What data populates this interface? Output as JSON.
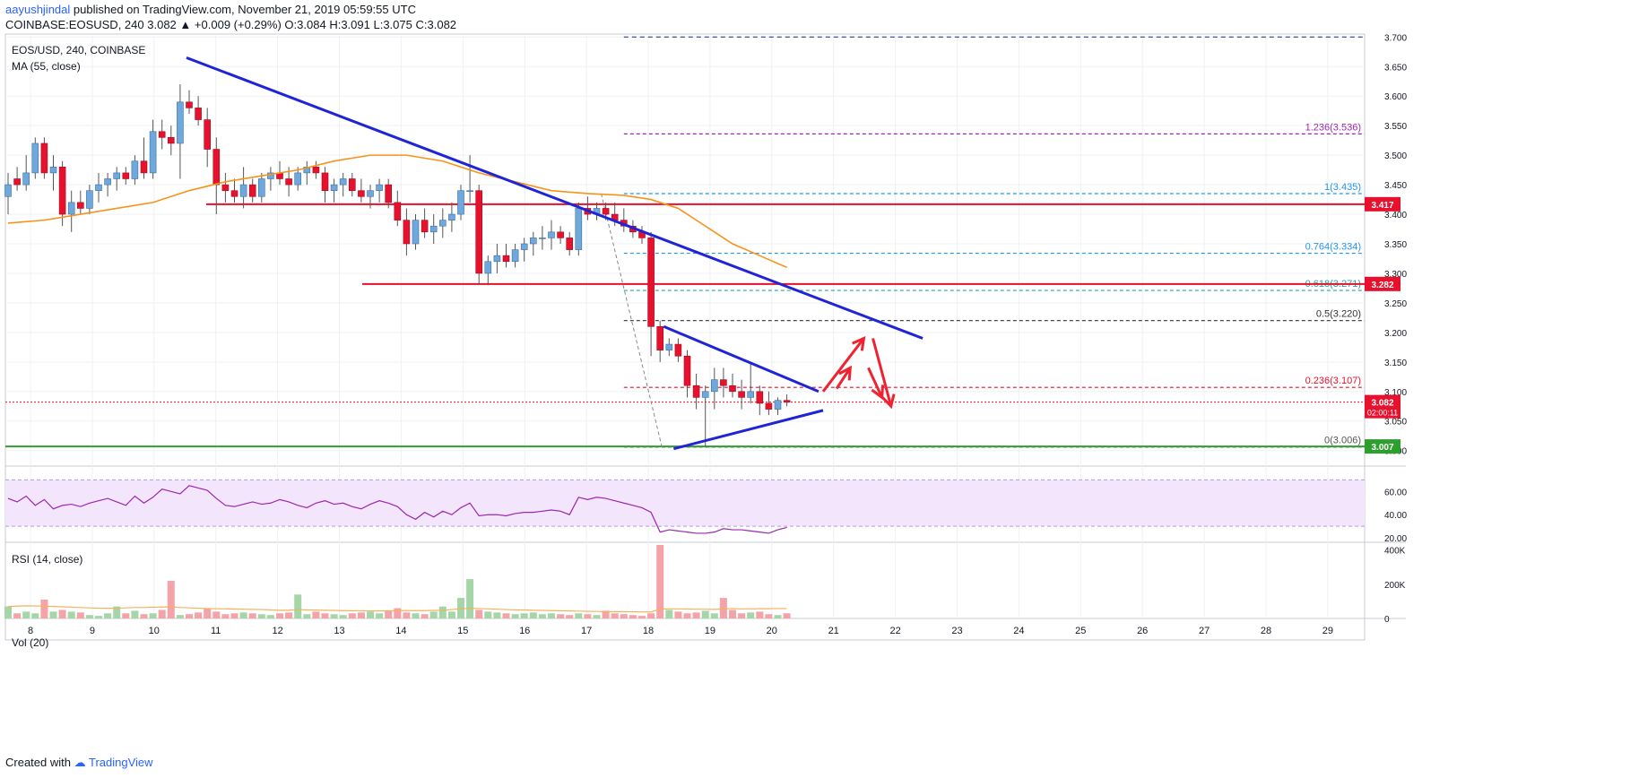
{
  "header": {
    "user": "aayushjindal",
    "published": "published on TradingView.com, November 21, 2019 05:59:55 UTC",
    "symbol": "COINBASE:EOSUSD, 240",
    "last": "3.082",
    "arrow": "▲",
    "change": "+0.009 (+0.29%)",
    "o_label": "O:",
    "o": "3.084",
    "h_label": "H:",
    "h": "3.091",
    "l_label": "L:",
    "l": "3.075",
    "c_label": "C:",
    "c": "3.082"
  },
  "legend": {
    "pair": "EOS/USD, 240, COINBASE",
    "ma": "MA (55, close)",
    "rsi": "RSI (14, close)",
    "vol": "Vol (20)"
  },
  "footer": {
    "created": "Created with",
    "brand": "TradingView"
  },
  "colors": {
    "up": "#6fa8dc",
    "down": "#e8112d",
    "ma": "#f7931a",
    "trend": "#1f24d6",
    "level": "#e8112d",
    "support": "#2e9e2e",
    "rsi_line": "#9c27b0",
    "rsi_band": "#f3e5fb",
    "vol_up": "#a5d6a7",
    "vol_down": "#f4a3a8",
    "vol_ma": "#f5b25c"
  },
  "chart_data": [
    {
      "type": "candlestick",
      "title": "EOS/USD, 240, COINBASE",
      "xlabel": "",
      "ylabel": "",
      "x_ticks": [
        "8",
        "9",
        "10",
        "11",
        "12",
        "13",
        "14",
        "15",
        "16",
        "17",
        "18",
        "19",
        "20",
        "21",
        "22",
        "23",
        "24",
        "25",
        "26",
        "27",
        "28",
        "29"
      ],
      "y_ticks": [
        "3.000",
        "3.050",
        "3.100",
        "3.150",
        "3.200",
        "3.250",
        "3.300",
        "3.350",
        "3.400",
        "3.450",
        "3.500",
        "3.550",
        "3.600",
        "3.650",
        "3.700"
      ],
      "ylim": [
        2.995,
        3.705
      ],
      "candles": [
        [
          3.43,
          3.47,
          3.4,
          3.45
        ],
        [
          3.46,
          3.48,
          3.44,
          3.45
        ],
        [
          3.45,
          3.5,
          3.44,
          3.47
        ],
        [
          3.47,
          3.53,
          3.46,
          3.52
        ],
        [
          3.52,
          3.53,
          3.46,
          3.47
        ],
        [
          3.47,
          3.5,
          3.44,
          3.48
        ],
        [
          3.48,
          3.49,
          3.38,
          3.4
        ],
        [
          3.4,
          3.44,
          3.37,
          3.42
        ],
        [
          3.42,
          3.44,
          3.4,
          3.41
        ],
        [
          3.41,
          3.45,
          3.4,
          3.44
        ],
        [
          3.44,
          3.47,
          3.42,
          3.45
        ],
        [
          3.45,
          3.47,
          3.43,
          3.46
        ],
        [
          3.46,
          3.48,
          3.44,
          3.47
        ],
        [
          3.47,
          3.48,
          3.45,
          3.46
        ],
        [
          3.46,
          3.5,
          3.45,
          3.49
        ],
        [
          3.49,
          3.53,
          3.46,
          3.47
        ],
        [
          3.47,
          3.56,
          3.46,
          3.54
        ],
        [
          3.54,
          3.56,
          3.51,
          3.53
        ],
        [
          3.53,
          3.55,
          3.5,
          3.52
        ],
        [
          3.52,
          3.62,
          3.46,
          3.59
        ],
        [
          3.59,
          3.61,
          3.57,
          3.58
        ],
        [
          3.58,
          3.6,
          3.55,
          3.56
        ],
        [
          3.56,
          3.58,
          3.48,
          3.51
        ],
        [
          3.51,
          3.53,
          3.4,
          3.45
        ],
        [
          3.45,
          3.47,
          3.42,
          3.44
        ],
        [
          3.44,
          3.46,
          3.42,
          3.43
        ],
        [
          3.43,
          3.48,
          3.41,
          3.45
        ],
        [
          3.45,
          3.46,
          3.42,
          3.43
        ],
        [
          3.43,
          3.47,
          3.42,
          3.46
        ],
        [
          3.46,
          3.48,
          3.44,
          3.47
        ],
        [
          3.47,
          3.49,
          3.45,
          3.46
        ],
        [
          3.46,
          3.48,
          3.43,
          3.45
        ],
        [
          3.45,
          3.48,
          3.44,
          3.47
        ],
        [
          3.47,
          3.49,
          3.45,
          3.48
        ],
        [
          3.48,
          3.49,
          3.46,
          3.47
        ],
        [
          3.47,
          3.48,
          3.42,
          3.44
        ],
        [
          3.44,
          3.46,
          3.42,
          3.45
        ],
        [
          3.45,
          3.47,
          3.43,
          3.46
        ],
        [
          3.46,
          3.47,
          3.43,
          3.44
        ],
        [
          3.44,
          3.46,
          3.42,
          3.43
        ],
        [
          3.43,
          3.45,
          3.41,
          3.44
        ],
        [
          3.44,
          3.46,
          3.42,
          3.45
        ],
        [
          3.45,
          3.46,
          3.41,
          3.42
        ],
        [
          3.42,
          3.44,
          3.38,
          3.39
        ],
        [
          3.39,
          3.41,
          3.33,
          3.35
        ],
        [
          3.35,
          3.4,
          3.34,
          3.39
        ],
        [
          3.39,
          3.41,
          3.36,
          3.37
        ],
        [
          3.37,
          3.4,
          3.35,
          3.38
        ],
        [
          3.38,
          3.41,
          3.36,
          3.39
        ],
        [
          3.39,
          3.42,
          3.37,
          3.4
        ],
        [
          3.4,
          3.45,
          3.39,
          3.44
        ],
        [
          3.44,
          3.5,
          3.42,
          3.44
        ],
        [
          3.44,
          3.45,
          3.28,
          3.3
        ],
        [
          3.3,
          3.33,
          3.28,
          3.32
        ],
        [
          3.32,
          3.35,
          3.3,
          3.33
        ],
        [
          3.33,
          3.35,
          3.31,
          3.32
        ],
        [
          3.32,
          3.35,
          3.31,
          3.34
        ],
        [
          3.34,
          3.36,
          3.32,
          3.35
        ],
        [
          3.35,
          3.37,
          3.33,
          3.36
        ],
        [
          3.36,
          3.38,
          3.34,
          3.36
        ],
        [
          3.36,
          3.39,
          3.34,
          3.37
        ],
        [
          3.37,
          3.38,
          3.35,
          3.36
        ],
        [
          3.36,
          3.37,
          3.33,
          3.34
        ],
        [
          3.34,
          3.42,
          3.33,
          3.41
        ],
        [
          3.41,
          3.43,
          3.39,
          3.4
        ],
        [
          3.4,
          3.42,
          3.39,
          3.41
        ],
        [
          3.41,
          3.42,
          3.39,
          3.4
        ],
        [
          3.4,
          3.42,
          3.38,
          3.39
        ],
        [
          3.39,
          3.41,
          3.37,
          3.38
        ],
        [
          3.38,
          3.39,
          3.36,
          3.37
        ],
        [
          3.37,
          3.38,
          3.35,
          3.36
        ],
        [
          3.36,
          3.37,
          3.16,
          3.21
        ],
        [
          3.21,
          3.22,
          3.15,
          3.17
        ],
        [
          3.17,
          3.19,
          3.16,
          3.18
        ],
        [
          3.18,
          3.19,
          3.15,
          3.16
        ],
        [
          3.16,
          3.17,
          3.09,
          3.11
        ],
        [
          3.11,
          3.13,
          3.07,
          3.09
        ],
        [
          3.09,
          3.11,
          3.006,
          3.1
        ],
        [
          3.1,
          3.14,
          3.07,
          3.12
        ],
        [
          3.12,
          3.14,
          3.09,
          3.11
        ],
        [
          3.11,
          3.13,
          3.09,
          3.1
        ],
        [
          3.1,
          3.12,
          3.07,
          3.09
        ],
        [
          3.09,
          3.15,
          3.08,
          3.1
        ],
        [
          3.1,
          3.11,
          3.06,
          3.08
        ],
        [
          3.08,
          3.1,
          3.06,
          3.07
        ],
        [
          3.07,
          3.09,
          3.06,
          3.085
        ],
        [
          3.085,
          3.095,
          3.075,
          3.082
        ]
      ],
      "ma55": [
        [
          0,
          3.385
        ],
        [
          4,
          3.39
        ],
        [
          8,
          3.4
        ],
        [
          12,
          3.41
        ],
        [
          16,
          3.42
        ],
        [
          20,
          3.44
        ],
        [
          24,
          3.455
        ],
        [
          28,
          3.465
        ],
        [
          32,
          3.475
        ],
        [
          36,
          3.49
        ],
        [
          40,
          3.5
        ],
        [
          44,
          3.5
        ],
        [
          48,
          3.49
        ],
        [
          52,
          3.47
        ],
        [
          56,
          3.455
        ],
        [
          60,
          3.44
        ],
        [
          64,
          3.435
        ],
        [
          68,
          3.432
        ],
        [
          71,
          3.425
        ],
        [
          74,
          3.41
        ],
        [
          76,
          3.39
        ],
        [
          78,
          3.37
        ],
        [
          80,
          3.35
        ],
        [
          83,
          3.33
        ],
        [
          86,
          3.31
        ]
      ],
      "levels": [
        {
          "label": "3.417",
          "value": 3.417,
          "role": "resistance"
        },
        {
          "label": "3.282",
          "value": 3.282,
          "role": "resistance"
        },
        {
          "label": "3.007",
          "value": 3.007,
          "role": "support"
        }
      ],
      "fib": [
        {
          "label": "1.236(3.536)",
          "value": 3.536
        },
        {
          "label": "1(3.435)",
          "value": 3.435
        },
        {
          "label": "0.764(3.334)",
          "value": 3.334
        },
        {
          "label": "0.618(3.271)",
          "value": 3.271
        },
        {
          "label": "0.5(3.220)",
          "value": 3.22
        },
        {
          "label": "0.236(3.107)",
          "value": 3.107
        },
        {
          "label": "0(3.006)",
          "value": 3.006
        }
      ],
      "top_line": 3.7,
      "current": {
        "label": "3.082",
        "value": 3.082,
        "timer": "02:00:11"
      },
      "trendlines": [
        {
          "from": [
            19.7,
            3.665
          ],
          "to": [
            101,
            3.19
          ]
        },
        {
          "from": [
            72.4,
            3.21
          ],
          "to": [
            89.5,
            3.1
          ]
        },
        {
          "from": [
            73.5,
            3.003
          ],
          "to": [
            90,
            3.068
          ]
        }
      ],
      "arrows": [
        {
          "from": [
            90,
            3.1
          ],
          "to": [
            94.5,
            3.19
          ]
        },
        {
          "from": [
            95.5,
            3.19
          ],
          "to": [
            97.5,
            3.075
          ]
        },
        {
          "from": [
            95,
            3.14
          ],
          "to": [
            96.5,
            3.09
          ]
        },
        {
          "from": [
            91.5,
            3.105
          ],
          "to": [
            93,
            3.14
          ]
        }
      ],
      "fib_dashed": {
        "from": [
          65.5,
          3.435
        ],
        "to": [
          72.2,
          3.006
        ]
      }
    },
    {
      "type": "line",
      "title": "RSI (14, close)",
      "y_ticks": [
        "20.00",
        "40.00",
        "60.00"
      ],
      "ylim": [
        17,
        78
      ],
      "band": [
        30,
        70
      ],
      "values": [
        54,
        51,
        56,
        48,
        53,
        45,
        48,
        49,
        47,
        50,
        52,
        54,
        51,
        48,
        56,
        50,
        55,
        62,
        60,
        58,
        65,
        63,
        61,
        54,
        48,
        47,
        49,
        51,
        49,
        50,
        53,
        51,
        48,
        46,
        50,
        52,
        49,
        50,
        47,
        45,
        49,
        52,
        50,
        47,
        40,
        36,
        42,
        38,
        43,
        40,
        46,
        50,
        39,
        40,
        40,
        39,
        41,
        42,
        42,
        43,
        44,
        43,
        40,
        55,
        53,
        55,
        54,
        52,
        50,
        48,
        46,
        42,
        25,
        27,
        26,
        25,
        24,
        24,
        25,
        28,
        27,
        27,
        26,
        25,
        24,
        27,
        29
      ],
      "color": "#9c27b0"
    },
    {
      "type": "bar",
      "title": "Vol (20)",
      "y_ticks": [
        "0",
        "200K",
        "400K"
      ],
      "ylim": [
        0,
        430000
      ],
      "values": [
        70000,
        30000,
        40000,
        30000,
        110000,
        40000,
        50000,
        40000,
        35000,
        20000,
        15000,
        30000,
        70000,
        30000,
        45000,
        25000,
        30000,
        50000,
        220000,
        20000,
        25000,
        35000,
        60000,
        40000,
        25000,
        30000,
        35000,
        30000,
        25000,
        20000,
        30000,
        35000,
        140000,
        25000,
        40000,
        30000,
        25000,
        20000,
        30000,
        35000,
        40000,
        30000,
        45000,
        60000,
        35000,
        30000,
        25000,
        40000,
        70000,
        40000,
        120000,
        230000,
        50000,
        40000,
        35000,
        30000,
        25000,
        30000,
        35000,
        25000,
        30000,
        25000,
        20000,
        30000,
        25000,
        20000,
        45000,
        30000,
        25000,
        20000,
        15000,
        30000,
        430000,
        50000,
        40000,
        30000,
        35000,
        45000,
        30000,
        120000,
        50000,
        30000,
        35000,
        40000,
        25000,
        20000,
        30000
      ],
      "ma": [
        70000,
        72000,
        74000,
        73000,
        72000,
        70000,
        68000,
        66000,
        64000,
        62000,
        60000,
        60000,
        60000,
        62000,
        64000,
        64000,
        66000,
        67000,
        68000,
        64000,
        62000,
        60000,
        58000,
        57000,
        56000,
        55000,
        54000,
        53000,
        52000,
        50000,
        48000,
        48000,
        52000,
        50000,
        49000,
        48000,
        47000,
        46000,
        45000,
        45000,
        44000,
        44000,
        45000,
        46000,
        46000,
        46000,
        46000,
        47000,
        48000,
        52000,
        56000,
        60000,
        58000,
        56000,
        54000,
        52000,
        50000,
        50000,
        48000,
        47000,
        46000,
        45000,
        44000,
        43000,
        42000,
        41000,
        40000,
        40000,
        40000,
        39000,
        38000,
        38000,
        55000,
        56000,
        56000,
        55000,
        54000,
        54000,
        53000,
        56000,
        58000,
        56000,
        56000,
        57000,
        57000,
        58000,
        58000
      ]
    }
  ]
}
